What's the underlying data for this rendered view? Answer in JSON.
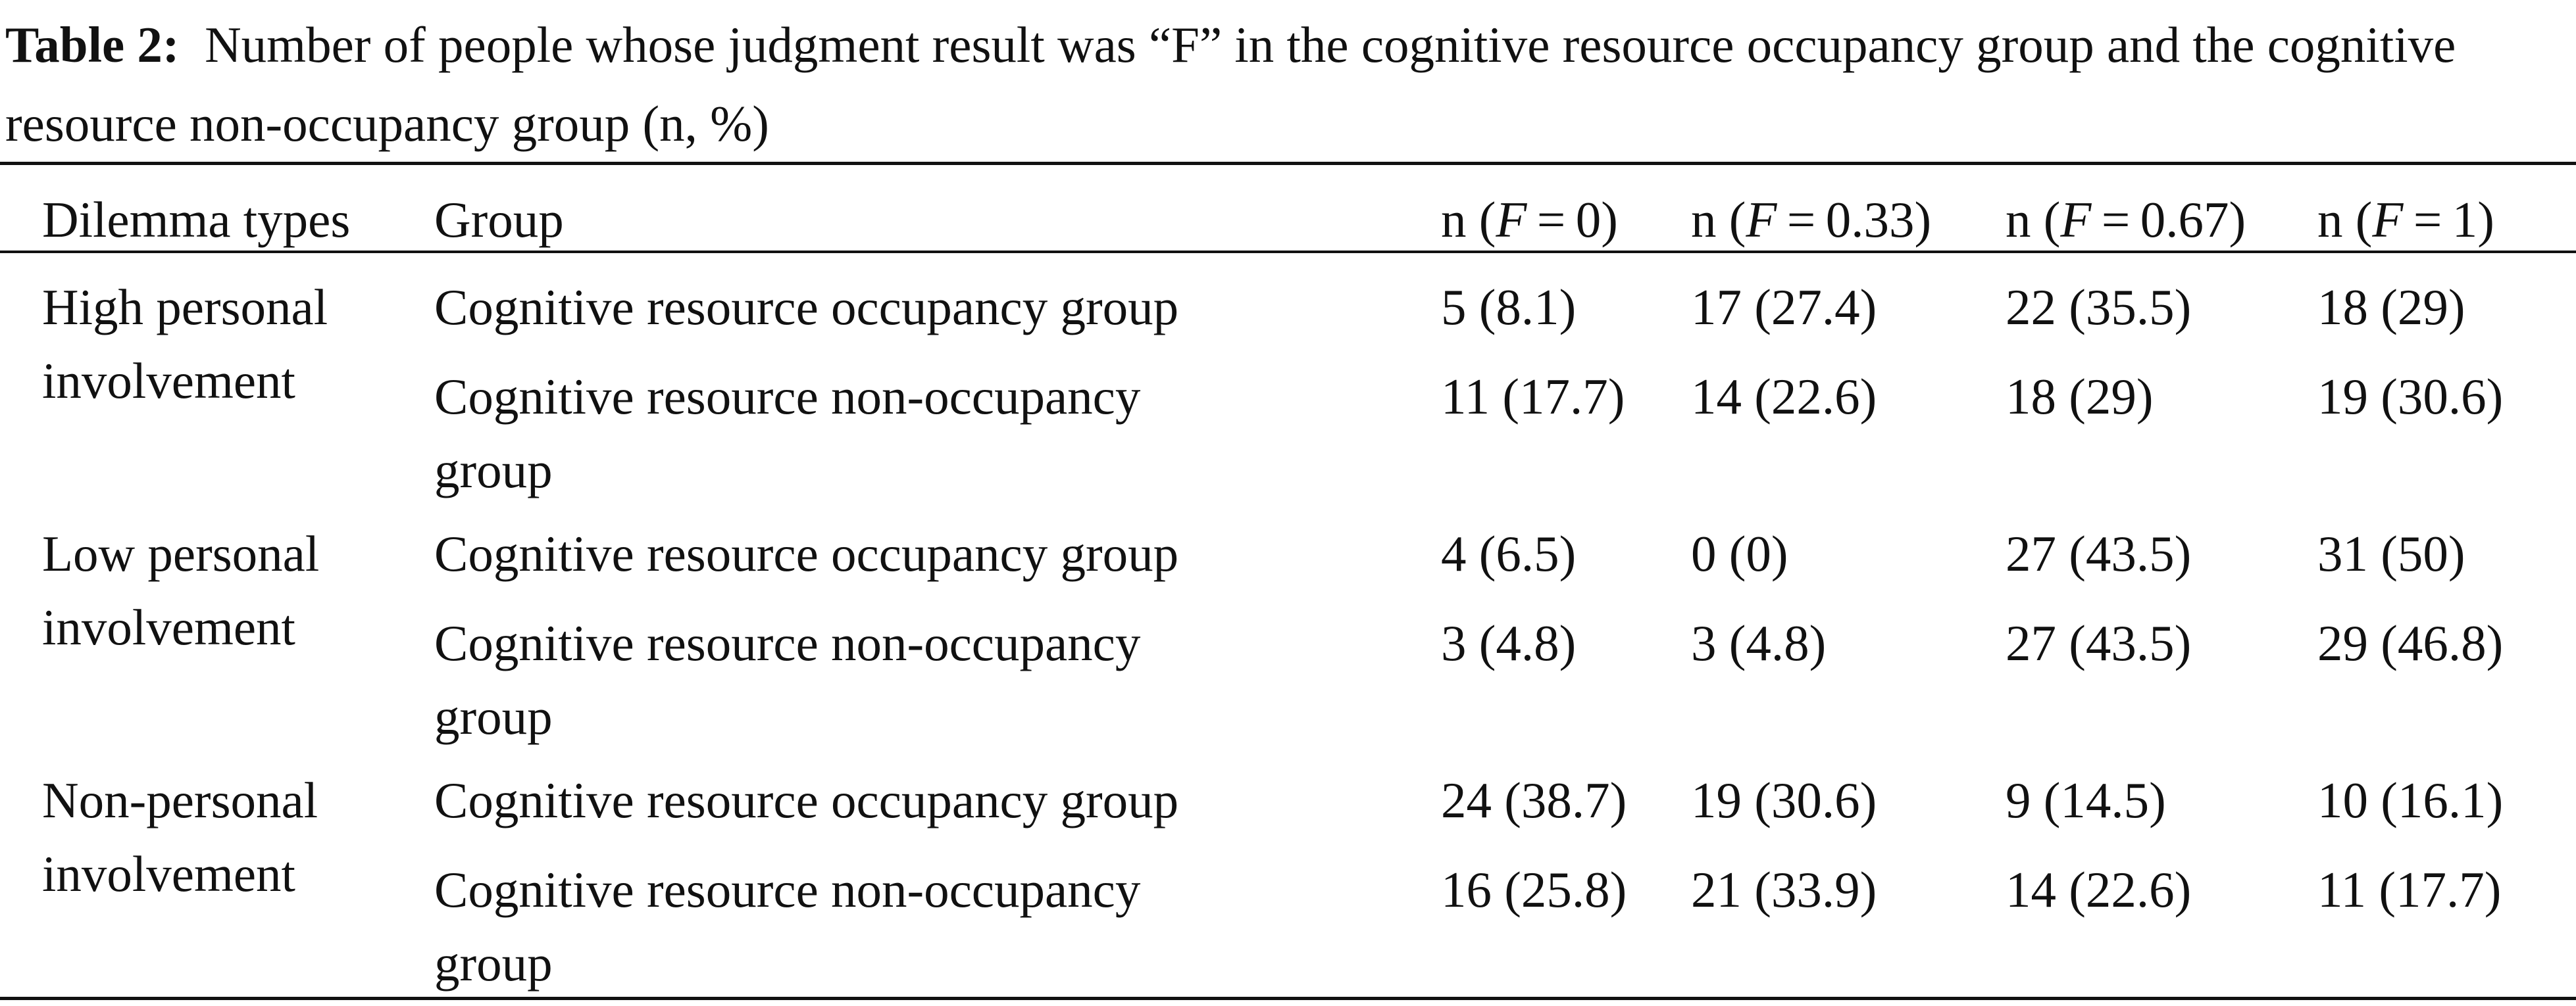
{
  "caption": {
    "label": "Table 2:",
    "text": "Number of people whose judgment result was “F” in the cognitive resource occupancy group and the cognitive resource non-occupancy group (n, %)"
  },
  "table": {
    "headers": {
      "dilemma": "Dilemma types",
      "group": "Group",
      "f0": {
        "pre": "n (",
        "var": "F",
        "post": " = 0)"
      },
      "f033": {
        "pre": "n (",
        "var": "F",
        "post": " = 0.33)"
      },
      "f067": {
        "pre": "n (",
        "var": "F",
        "post": " = 0.67)"
      },
      "f1": {
        "pre": "n (",
        "var": "F",
        "post": " = 1)"
      }
    },
    "sections": [
      {
        "dilemma": [
          "High personal",
          "involvement"
        ],
        "rows": [
          {
            "group": [
              "Cognitive resource occupancy group"
            ],
            "f0": "5 (8.1)",
            "f033": "17 (27.4)",
            "f067": "22 (35.5)",
            "f1": "18 (29)"
          },
          {
            "group": [
              "Cognitive resource non-occupancy",
              "group"
            ],
            "f0": "11 (17.7)",
            "f033": "14 (22.6)",
            "f067": "18 (29)",
            "f1": "19 (30.6)"
          }
        ]
      },
      {
        "dilemma": [
          "Low personal",
          "involvement"
        ],
        "rows": [
          {
            "group": [
              "Cognitive resource occupancy group"
            ],
            "f0": "4 (6.5)",
            "f033": "0 (0)",
            "f067": "27 (43.5)",
            "f1": "31 (50)"
          },
          {
            "group": [
              "Cognitive resource non-occupancy",
              "group"
            ],
            "f0": "3 (4.8)",
            "f033": "3 (4.8)",
            "f067": "27 (43.5)",
            "f1": "29 (46.8)"
          }
        ]
      },
      {
        "dilemma": [
          "Non-personal",
          "involvement"
        ],
        "rows": [
          {
            "group": [
              "Cognitive resource occupancy group"
            ],
            "f0": "24 (38.7)",
            "f033": "19 (30.6)",
            "f067": "9 (14.5)",
            "f1": "10 (16.1)"
          },
          {
            "group": [
              "Cognitive resource non-occupancy",
              "group"
            ],
            "f0": "16 (25.8)",
            "f033": "21 (33.9)",
            "f067": "14 (22.6)",
            "f1": "11 (17.7)"
          }
        ]
      }
    ]
  }
}
